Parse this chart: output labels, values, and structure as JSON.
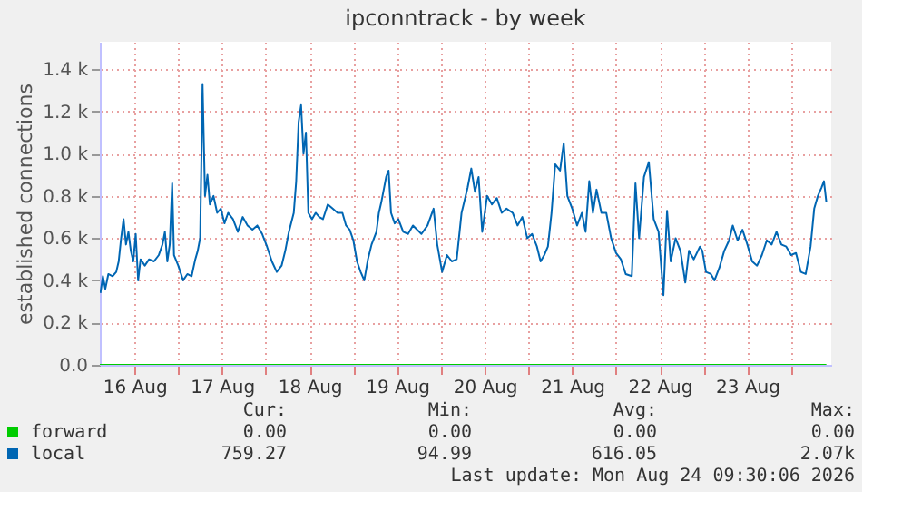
{
  "chart_data": {
    "type": "line",
    "title": "ipconntrack - by week",
    "ylabel": "established connections",
    "xlim": [
      "2026-08-16T02:30",
      "2026-08-24T11:00"
    ],
    "xticks": [
      {
        "value": "2026-08-16T12:00",
        "label": "16 Aug"
      },
      {
        "value": "2026-08-17T00:00",
        "label": null
      },
      {
        "value": "2026-08-17T12:00",
        "label": "17 Aug"
      },
      {
        "value": "2026-08-18T00:00",
        "label": null
      },
      {
        "value": "2026-08-18T12:00",
        "label": "18 Aug"
      },
      {
        "value": "2026-08-19T00:00",
        "label": null
      },
      {
        "value": "2026-08-19T12:00",
        "label": "19 Aug"
      },
      {
        "value": "2026-08-20T00:00",
        "label": null
      },
      {
        "value": "2026-08-20T12:00",
        "label": "20 Aug"
      },
      {
        "value": "2026-08-21T00:00",
        "label": null
      },
      {
        "value": "2026-08-21T12:00",
        "label": "21 Aug"
      },
      {
        "value": "2026-08-22T00:00",
        "label": null
      },
      {
        "value": "2026-08-22T12:00",
        "label": "22 Aug"
      },
      {
        "value": "2026-08-23T00:00",
        "label": null
      },
      {
        "value": "2026-08-23T12:00",
        "label": "23 Aug"
      },
      {
        "value": "2026-08-24T00:00",
        "label": null
      }
    ],
    "ylim": [
      0,
      1530
    ],
    "yticks": [
      {
        "value": 0,
        "label": "0.0"
      },
      {
        "value": 200,
        "label": "0.2 k"
      },
      {
        "value": 400,
        "label": "0.4 k"
      },
      {
        "value": 600,
        "label": "0.6 k"
      },
      {
        "value": 800,
        "label": "0.8 k"
      },
      {
        "value": 1000,
        "label": "1.0 k"
      },
      {
        "value": 1200,
        "label": "1.2 k"
      },
      {
        "value": 1400,
        "label": "1.4 k"
      }
    ],
    "grid": true,
    "legend": "bottom",
    "series": [
      {
        "name": "forward",
        "color": "#00cc00",
        "x": [
          "2026-08-16T02:30",
          "2026-08-24T09:40"
        ],
        "values": [
          0,
          0
        ]
      },
      {
        "name": "local",
        "color": "#0066b3",
        "x": [
          "2026-08-16T02:40",
          "2026-08-16T03:20",
          "2026-08-16T04:00",
          "2026-08-16T04:50",
          "2026-08-16T06:00",
          "2026-08-16T07:00",
          "2026-08-16T07:40",
          "2026-08-16T08:20",
          "2026-08-16T09:00",
          "2026-08-16T09:40",
          "2026-08-16T10:20",
          "2026-08-16T11:00",
          "2026-08-16T11:40",
          "2026-08-16T12:20",
          "2026-08-16T13:00",
          "2026-08-16T13:40",
          "2026-08-16T14:50",
          "2026-08-16T16:00",
          "2026-08-16T17:20",
          "2026-08-16T18:40",
          "2026-08-16T19:40",
          "2026-08-16T20:20",
          "2026-08-16T21:00",
          "2026-08-16T21:40",
          "2026-08-16T22:20",
          "2026-08-16T22:50",
          "2026-08-17T00:00",
          "2026-08-17T01:20",
          "2026-08-17T02:30",
          "2026-08-17T03:40",
          "2026-08-17T04:40",
          "2026-08-17T05:20",
          "2026-08-17T06:00",
          "2026-08-17T06:40",
          "2026-08-17T07:20",
          "2026-08-17T08:00",
          "2026-08-17T08:40",
          "2026-08-17T09:40",
          "2026-08-17T10:40",
          "2026-08-17T11:40",
          "2026-08-17T12:40",
          "2026-08-17T13:40",
          "2026-08-17T15:00",
          "2026-08-17T16:20",
          "2026-08-17T17:40",
          "2026-08-17T19:00",
          "2026-08-17T20:20",
          "2026-08-17T21:40",
          "2026-08-17T23:00",
          "2026-08-18T00:20",
          "2026-08-18T01:40",
          "2026-08-18T03:00",
          "2026-08-18T04:20",
          "2026-08-18T05:20",
          "2026-08-18T06:20",
          "2026-08-18T07:40",
          "2026-08-18T08:20",
          "2026-08-18T09:00",
          "2026-08-18T09:40",
          "2026-08-18T10:20",
          "2026-08-18T11:00",
          "2026-08-18T11:40",
          "2026-08-18T12:40",
          "2026-08-18T13:40",
          "2026-08-18T14:40",
          "2026-08-18T15:40",
          "2026-08-18T17:00",
          "2026-08-18T18:20",
          "2026-08-18T19:40",
          "2026-08-18T21:00",
          "2026-08-18T22:00",
          "2026-08-18T23:00",
          "2026-08-19T00:00",
          "2026-08-19T01:00",
          "2026-08-19T02:00",
          "2026-08-19T03:00",
          "2026-08-19T04:00",
          "2026-08-19T05:00",
          "2026-08-19T06:20",
          "2026-08-19T07:00",
          "2026-08-19T07:40",
          "2026-08-19T08:20",
          "2026-08-19T09:00",
          "2026-08-19T09:40",
          "2026-08-19T10:20",
          "2026-08-19T11:20",
          "2026-08-19T12:20",
          "2026-08-19T13:40",
          "2026-08-19T15:00",
          "2026-08-19T16:20",
          "2026-08-19T18:40",
          "2026-08-19T20:20",
          "2026-08-19T22:00",
          "2026-08-19T23:00",
          "2026-08-20T00:20",
          "2026-08-20T01:40",
          "2026-08-20T03:00",
          "2026-08-20T04:20",
          "2026-08-20T05:40",
          "2026-08-20T07:20",
          "2026-08-20T08:20",
          "2026-08-20T09:20",
          "2026-08-20T10:20",
          "2026-08-20T11:20",
          "2026-08-20T12:40",
          "2026-08-20T14:00",
          "2026-08-20T15:20",
          "2026-08-20T16:40",
          "2026-08-20T18:00",
          "2026-08-20T19:40",
          "2026-08-20T21:00",
          "2026-08-20T22:20",
          "2026-08-20T23:40",
          "2026-08-21T01:00",
          "2026-08-21T02:20",
          "2026-08-21T03:20",
          "2026-08-21T04:20",
          "2026-08-21T05:20",
          "2026-08-21T06:20",
          "2026-08-21T07:20",
          "2026-08-21T08:40",
          "2026-08-21T09:40",
          "2026-08-21T10:40",
          "2026-08-21T12:00",
          "2026-08-21T13:20",
          "2026-08-21T14:40",
          "2026-08-21T15:40",
          "2026-08-21T16:40",
          "2026-08-21T17:40",
          "2026-08-21T18:40",
          "2026-08-21T20:00",
          "2026-08-21T21:20",
          "2026-08-21T22:40",
          "2026-08-22T00:00",
          "2026-08-22T01:20",
          "2026-08-22T02:40",
          "2026-08-22T04:20",
          "2026-08-22T05:20",
          "2026-08-22T06:20",
          "2026-08-22T07:40",
          "2026-08-22T09:00",
          "2026-08-22T10:20",
          "2026-08-22T11:40",
          "2026-08-22T13:00",
          "2026-08-22T14:00",
          "2026-08-22T15:00",
          "2026-08-22T16:20",
          "2026-08-22T17:40",
          "2026-08-22T19:00",
          "2026-08-22T20:00",
          "2026-08-22T21:20",
          "2026-08-22T23:00",
          "2026-08-22T23:40",
          "2026-08-23T00:40",
          "2026-08-23T02:00",
          "2026-08-23T03:00",
          "2026-08-23T04:20",
          "2026-08-23T05:40",
          "2026-08-23T07:00",
          "2026-08-23T08:00",
          "2026-08-23T09:20",
          "2026-08-23T10:40",
          "2026-08-23T12:00",
          "2026-08-23T13:20",
          "2026-08-23T14:40",
          "2026-08-23T16:00",
          "2026-08-23T17:20",
          "2026-08-23T18:40",
          "2026-08-23T20:00",
          "2026-08-23T21:20",
          "2026-08-23T22:40",
          "2026-08-24T00:00",
          "2026-08-24T01:20",
          "2026-08-24T02:40",
          "2026-08-24T04:00",
          "2026-08-24T05:20",
          "2026-08-24T06:20",
          "2026-08-24T07:20",
          "2026-08-24T08:20",
          "2026-08-24T09:00",
          "2026-08-24T09:40"
        ],
        "values": [
          340,
          420,
          360,
          430,
          420,
          440,
          490,
          600,
          690,
          570,
          630,
          540,
          490,
          620,
          400,
          500,
          470,
          500,
          490,
          520,
          570,
          630,
          490,
          570,
          860,
          520,
          470,
          400,
          430,
          420,
          500,
          540,
          600,
          1330,
          800,
          900,
          760,
          800,
          720,
          740,
          670,
          720,
          690,
          630,
          700,
          660,
          640,
          660,
          620,
          560,
          490,
          440,
          470,
          540,
          630,
          720,
          870,
          1150,
          1230,
          1000,
          1100,
          720,
          690,
          720,
          700,
          690,
          760,
          740,
          720,
          720,
          660,
          640,
          590,
          490,
          440,
          400,
          500,
          570,
          630,
          720,
          770,
          830,
          890,
          920,
          720,
          670,
          690,
          630,
          620,
          660,
          620,
          660,
          740,
          570,
          440,
          520,
          490,
          500,
          720,
          840,
          930,
          820,
          890,
          630,
          800,
          760,
          790,
          720,
          740,
          720,
          660,
          700,
          600,
          620,
          560,
          490,
          520,
          560,
          720,
          950,
          920,
          1050,
          800,
          740,
          660,
          720,
          630,
          870,
          720,
          830,
          720,
          720,
          600,
          530,
          500,
          430,
          420,
          860,
          600,
          890,
          960,
          690,
          630,
          330,
          730,
          490,
          600,
          540,
          390,
          540,
          500,
          560,
          540,
          440,
          430,
          400,
          460,
          540,
          590,
          660,
          590,
          640,
          570,
          490,
          470,
          520,
          590,
          570,
          630,
          570,
          560,
          520,
          530,
          440,
          430,
          560,
          740,
          800,
          840,
          870,
          770
        ]
      }
    ],
    "annotations": [
      "Cur:",
      "Min:",
      "Avg:",
      "Max:",
      "0.00",
      "0.00",
      "0.00",
      "0.00",
      "759.27",
      "94.99",
      "616.05",
      "2.07k",
      "Last update: Mon Aug 24 09:30:06 2026"
    ]
  }
}
